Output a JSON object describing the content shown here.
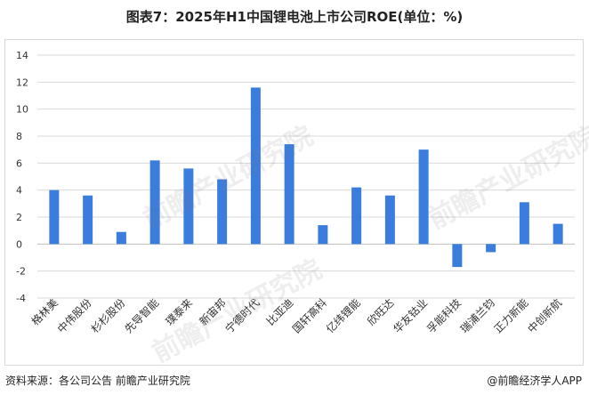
{
  "title": "图表7：2025年H1中国锂电池上市公司ROE(单位：%)",
  "footer": {
    "source": "资料来源：各公司公告 前瞻产业研究院",
    "brand": "@前瞻经济学人APP"
  },
  "watermark": "前瞻产业研究院",
  "colors": {
    "bar": "#3b7ddd",
    "grid": "#d9d9d9",
    "axis": "#bfbfbf"
  },
  "chart_data": {
    "type": "bar",
    "title": "图表7：2025年H1中国锂电池上市公司ROE(单位：%)",
    "categories": [
      "格林美",
      "中伟股份",
      "杉杉股份",
      "先导智能",
      "璞泰来",
      "新宙邦",
      "宁德时代",
      "比亚迪",
      "国轩高科",
      "亿纬锂能",
      "欣旺达",
      "华友钴业",
      "孚能科技",
      "瑞浦兰钧",
      "正力新能",
      "中创新航"
    ],
    "values": [
      4.0,
      3.6,
      0.9,
      6.2,
      5.6,
      4.8,
      11.6,
      7.4,
      1.4,
      4.2,
      3.6,
      7.0,
      -1.7,
      -0.6,
      3.1,
      1.5
    ],
    "yticks": [
      "14",
      "12",
      "10",
      "8",
      "6",
      "4",
      "2",
      "0",
      "-2",
      "-4"
    ],
    "ylim": [
      -4,
      14
    ],
    "grid": true,
    "legend": "none"
  }
}
